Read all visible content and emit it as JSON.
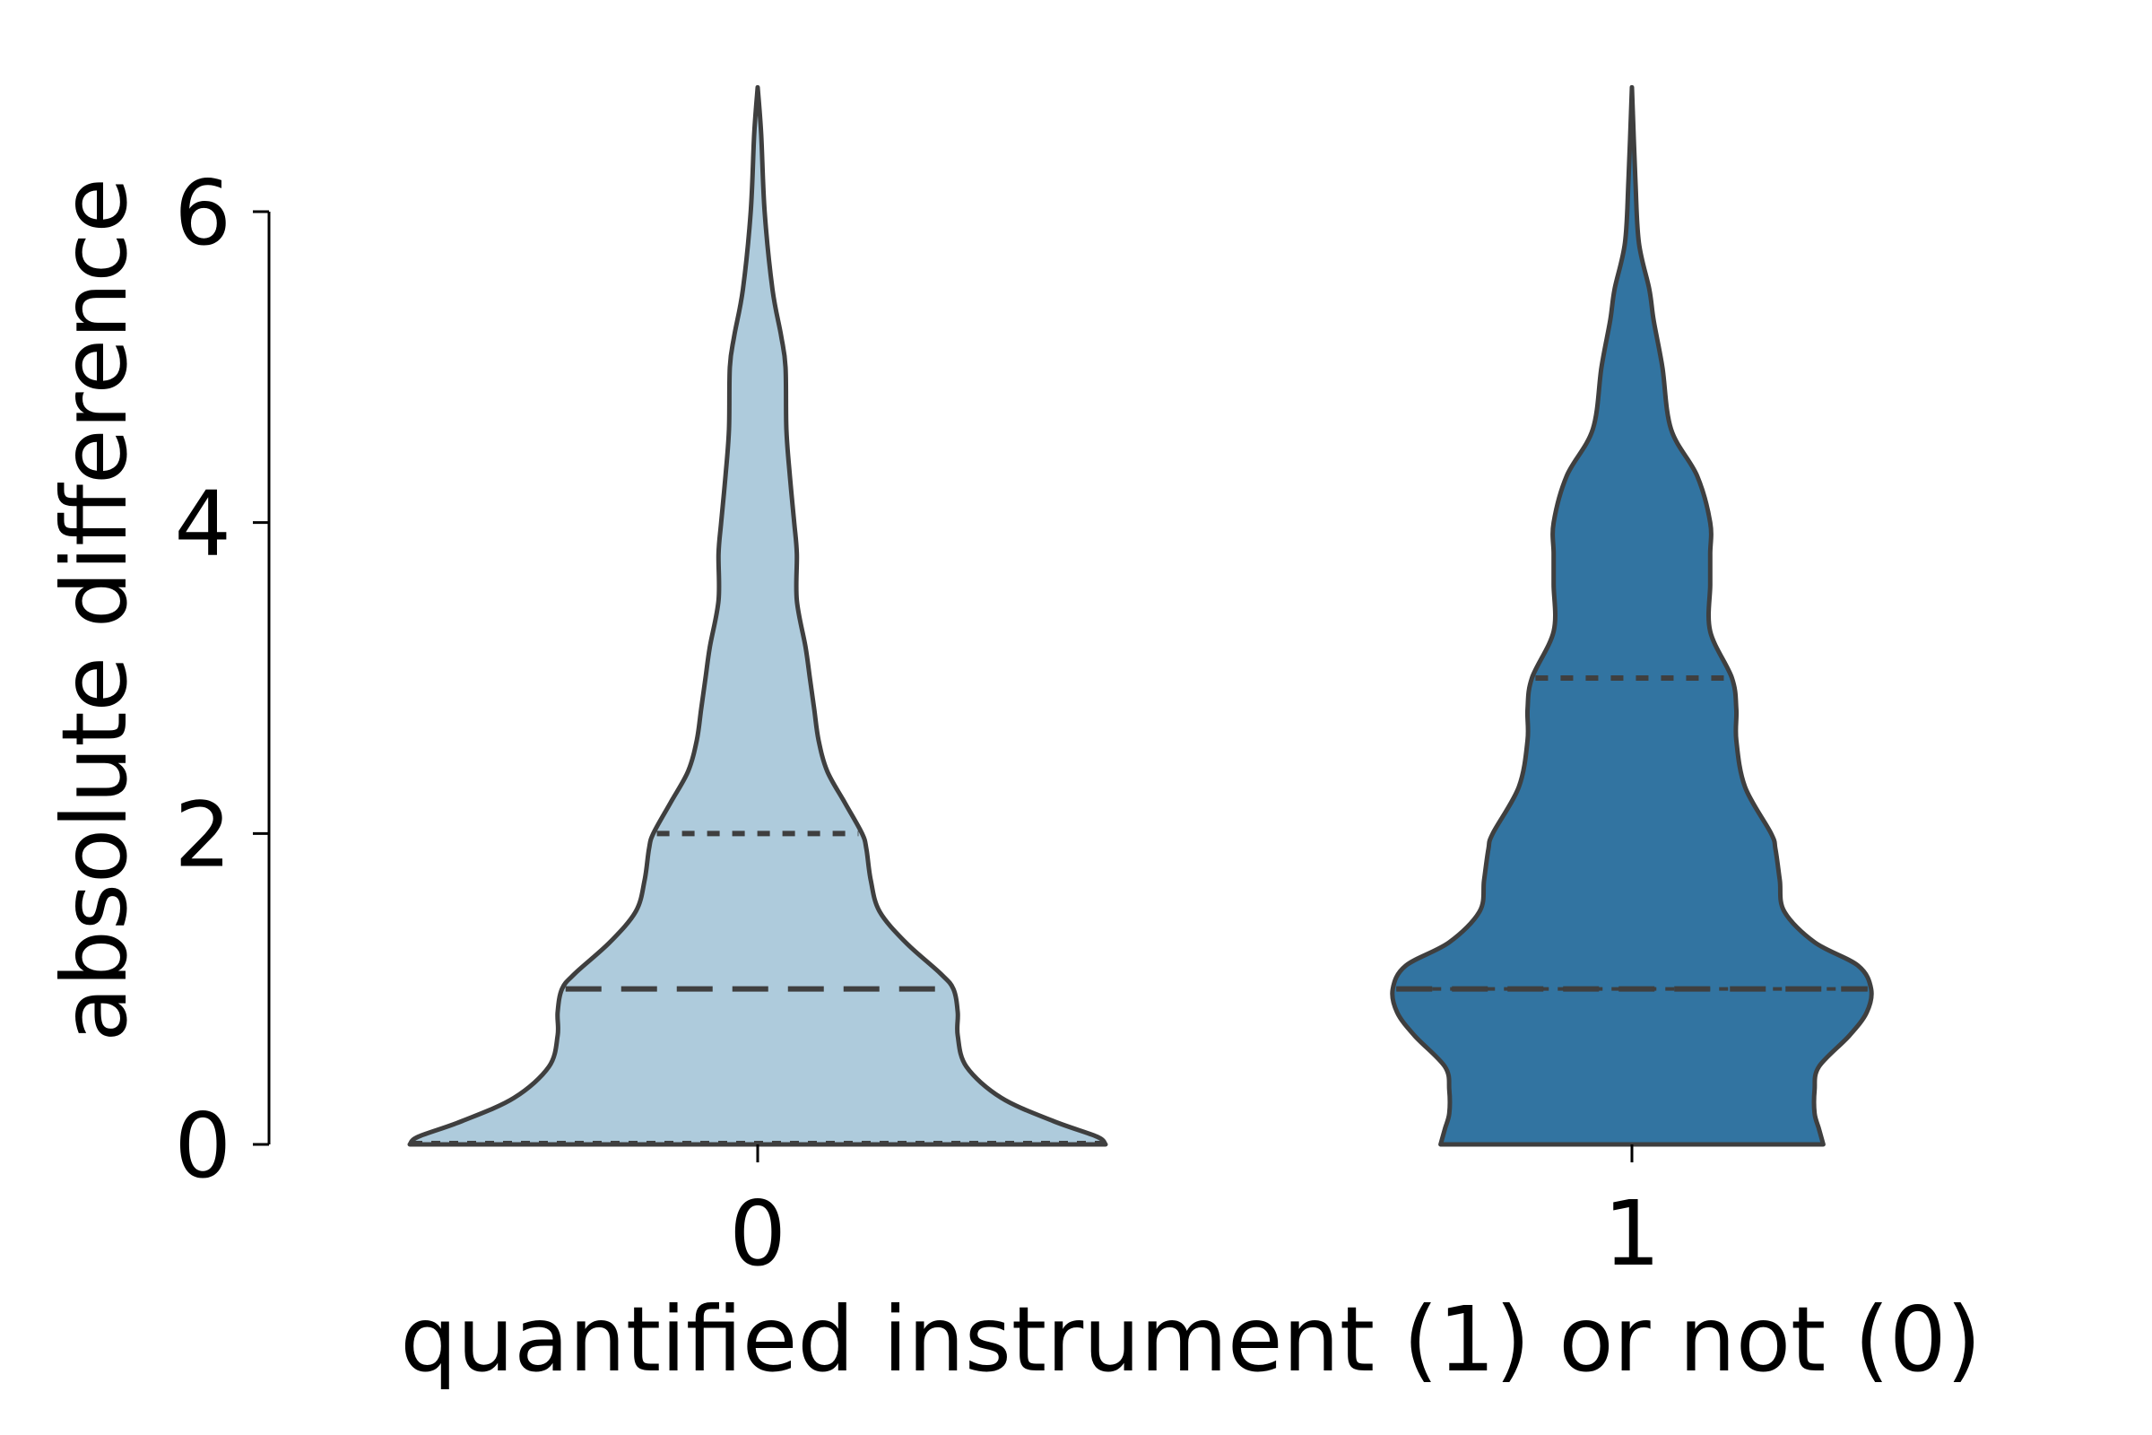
{
  "chart_data": {
    "type": "violin",
    "xlabel": "quantified instrument (1) or not (0)",
    "ylabel": "absolute difference",
    "categories": [
      "0",
      "1"
    ],
    "ylim": [
      0,
      6
    ],
    "yticks": [
      "0",
      "2",
      "4",
      "6"
    ],
    "grid": false,
    "legend": "none",
    "series": [
      {
        "category": "0",
        "color": "#aecbdc",
        "q1": 0,
        "median": 1,
        "q3": 2,
        "profile": [
          [
            0,
            0.4
          ],
          [
            0.05,
            0.39
          ],
          [
            0.15,
            0.34
          ],
          [
            0.3,
            0.28
          ],
          [
            0.5,
            0.24
          ],
          [
            0.7,
            0.23
          ],
          [
            0.85,
            0.23
          ],
          [
            1.0,
            0.225
          ],
          [
            1.1,
            0.21
          ],
          [
            1.3,
            0.17
          ],
          [
            1.5,
            0.14
          ],
          [
            1.7,
            0.13
          ],
          [
            1.9,
            0.125
          ],
          [
            2.0,
            0.12
          ],
          [
            2.2,
            0.1
          ],
          [
            2.4,
            0.08
          ],
          [
            2.6,
            0.07
          ],
          [
            2.8,
            0.065
          ],
          [
            3.0,
            0.06
          ],
          [
            3.2,
            0.055
          ],
          [
            3.5,
            0.045
          ],
          [
            3.8,
            0.045
          ],
          [
            4.0,
            0.042
          ],
          [
            4.3,
            0.037
          ],
          [
            4.6,
            0.033
          ],
          [
            5.0,
            0.032
          ],
          [
            5.2,
            0.027
          ],
          [
            5.5,
            0.017
          ],
          [
            6.0,
            0.008
          ],
          [
            6.5,
            0.004
          ],
          [
            6.8,
            0.0
          ]
        ]
      },
      {
        "category": "1",
        "color": "#3274a1",
        "q1": 1,
        "median": 1,
        "q3": 3,
        "profile": [
          [
            0,
            0.22
          ],
          [
            0.1,
            0.215
          ],
          [
            0.2,
            0.21
          ],
          [
            0.35,
            0.21
          ],
          [
            0.5,
            0.215
          ],
          [
            0.7,
            0.25
          ],
          [
            0.85,
            0.27
          ],
          [
            1.0,
            0.275
          ],
          [
            1.15,
            0.26
          ],
          [
            1.3,
            0.21
          ],
          [
            1.5,
            0.175
          ],
          [
            1.7,
            0.17
          ],
          [
            1.9,
            0.165
          ],
          [
            2.0,
            0.16
          ],
          [
            2.3,
            0.13
          ],
          [
            2.6,
            0.12
          ],
          [
            2.8,
            0.12
          ],
          [
            3.0,
            0.115
          ],
          [
            3.3,
            0.09
          ],
          [
            3.6,
            0.09
          ],
          [
            3.8,
            0.09
          ],
          [
            4.0,
            0.09
          ],
          [
            4.3,
            0.075
          ],
          [
            4.6,
            0.045
          ],
          [
            5.0,
            0.035
          ],
          [
            5.3,
            0.025
          ],
          [
            5.5,
            0.02
          ],
          [
            5.8,
            0.008
          ],
          [
            6.2,
            0.004
          ],
          [
            6.8,
            0.0
          ]
        ]
      }
    ]
  }
}
